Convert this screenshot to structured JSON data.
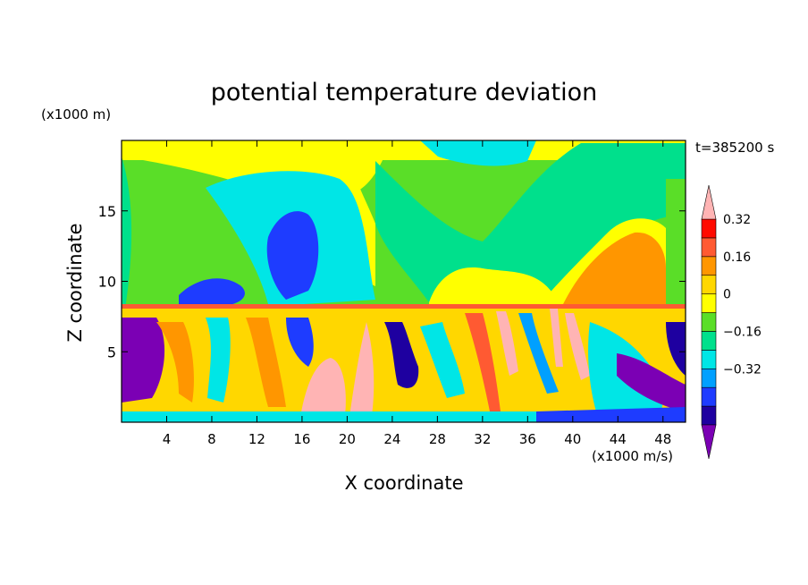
{
  "chart_data": {
    "type": "heatmap",
    "title": "potential temperature deviation",
    "xlabel": "X coordinate",
    "ylabel": "Z coordinate",
    "x_unit": "(x1000 m/s)",
    "y_unit": "(x1000 m)",
    "time_label": "t=385200 s",
    "x_range": [
      0,
      50
    ],
    "y_range": [
      0,
      20
    ],
    "x_ticks": [
      4,
      8,
      12,
      16,
      20,
      24,
      28,
      32,
      36,
      40,
      44,
      48
    ],
    "y_ticks": [
      5,
      10,
      15
    ],
    "colorbar": {
      "levels": [
        -0.48,
        -0.4,
        -0.32,
        -0.24,
        -0.16,
        -0.08,
        0,
        0.08,
        0.16,
        0.24,
        0.32,
        0.4
      ],
      "tick_labels": [
        "-0.32",
        "-0.16",
        "0",
        "0.16",
        "0.32"
      ],
      "tick_values": [
        -0.32,
        -0.16,
        0,
        0.16,
        0.32
      ],
      "colors": [
        "#7b00b4",
        "#1e00a0",
        "#1e3cff",
        "#00a0ff",
        "#00e6e6",
        "#00e08c",
        "#5ade28",
        "#ffff00",
        "#ffd700",
        "#ff9600",
        "#ff5a32",
        "#ff0a00",
        "#ffb4b4"
      ],
      "extend": "both"
    }
  }
}
